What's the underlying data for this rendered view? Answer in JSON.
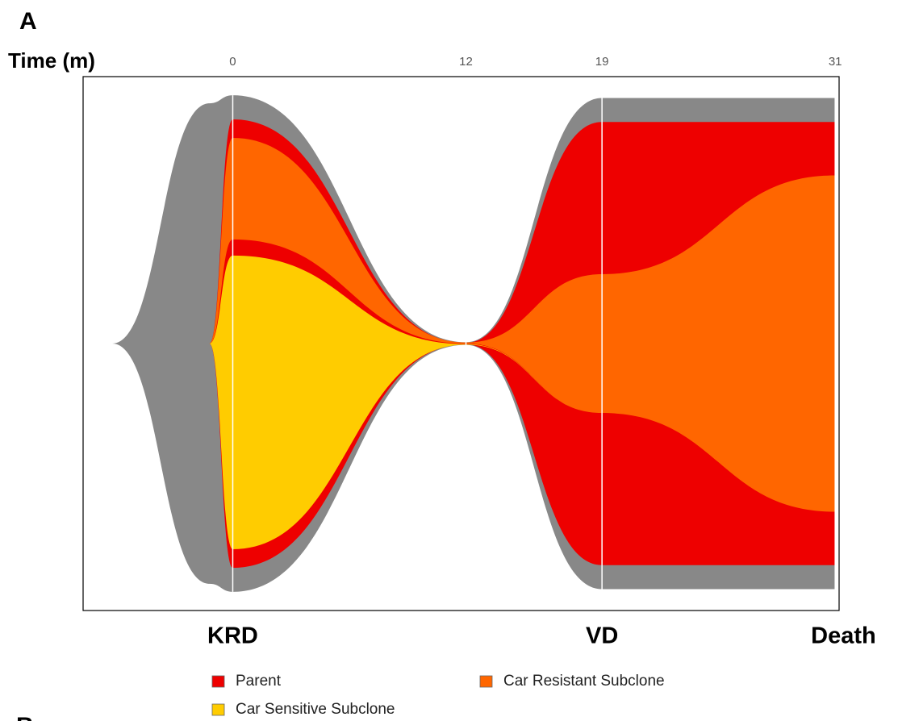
{
  "chart_data": {
    "type": "fish",
    "panel_label": "A",
    "next_panel_label": "B",
    "x_label": "Time (m)",
    "x": [
      -6.2,
      -1.2,
      0,
      12,
      19,
      31
    ],
    "x_labels": [
      null,
      null,
      "KRD",
      null,
      "VD",
      "Death"
    ],
    "xlim": [
      -7.7,
      31.2
    ],
    "xticks": [
      0,
      12,
      19,
      31
    ],
    "ylim": [
      0,
      100
    ],
    "envelope": {
      "color": "#888888",
      "values": [
        0,
        90,
        93,
        0.5,
        92,
        92
      ]
    },
    "series": [
      {
        "name": "Parent",
        "color": "#ee0000",
        "values": [
          0,
          0,
          84,
          0.3,
          83,
          83
        ]
      },
      {
        "name": "Car Resistant Subclone",
        "color": "#ff6600",
        "values": [
          0,
          0,
          19,
          0.2,
          26,
          63
        ]
      },
      {
        "name": "Car Sensitive Subclone",
        "color": "#ffcc00",
        "values": [
          0,
          0,
          55,
          0.1,
          0,
          0
        ]
      }
    ]
  }
}
